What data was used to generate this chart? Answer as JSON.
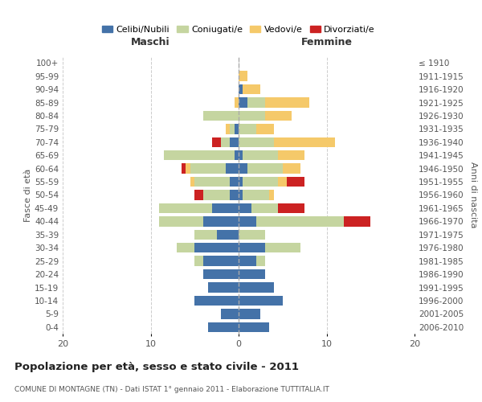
{
  "age_groups": [
    "0-4",
    "5-9",
    "10-14",
    "15-19",
    "20-24",
    "25-29",
    "30-34",
    "35-39",
    "40-44",
    "45-49",
    "50-54",
    "55-59",
    "60-64",
    "65-69",
    "70-74",
    "75-79",
    "80-84",
    "85-89",
    "90-94",
    "95-99",
    "100+"
  ],
  "birth_years": [
    "2006-2010",
    "2001-2005",
    "1996-2000",
    "1991-1995",
    "1986-1990",
    "1981-1985",
    "1976-1980",
    "1971-1975",
    "1966-1970",
    "1961-1965",
    "1956-1960",
    "1951-1955",
    "1946-1950",
    "1941-1945",
    "1936-1940",
    "1931-1935",
    "1926-1930",
    "1921-1925",
    "1916-1920",
    "1911-1915",
    "≤ 1910"
  ],
  "colors": {
    "celibi": "#4472a8",
    "coniugati": "#c5d5a0",
    "vedovi": "#f5c96a",
    "divorziati": "#cc2222"
  },
  "maschi": {
    "celibi": [
      3.5,
      2.0,
      5.0,
      3.5,
      4.0,
      4.0,
      5.0,
      2.5,
      4.0,
      3.0,
      1.0,
      1.0,
      1.5,
      0.5,
      1.0,
      0.5,
      0.0,
      0.0,
      0.0,
      0.0,
      0.0
    ],
    "coniugati": [
      0.0,
      0.0,
      0.0,
      0.0,
      0.0,
      1.0,
      2.0,
      2.5,
      5.0,
      6.0,
      3.0,
      4.0,
      4.0,
      8.0,
      1.0,
      0.5,
      4.0,
      0.0,
      0.0,
      0.0,
      0.0
    ],
    "vedovi": [
      0.0,
      0.0,
      0.0,
      0.0,
      0.0,
      0.0,
      0.0,
      0.0,
      0.0,
      0.0,
      0.0,
      0.5,
      0.5,
      0.0,
      0.0,
      0.5,
      0.0,
      0.5,
      0.0,
      0.0,
      0.0
    ],
    "divorziati": [
      0.0,
      0.0,
      0.0,
      0.0,
      0.0,
      0.0,
      0.0,
      0.0,
      0.0,
      0.0,
      1.0,
      0.0,
      0.5,
      0.0,
      1.0,
      0.0,
      0.0,
      0.0,
      0.0,
      0.0,
      0.0
    ]
  },
  "femmine": {
    "celibi": [
      3.5,
      2.5,
      5.0,
      4.0,
      3.0,
      2.0,
      3.0,
      0.0,
      2.0,
      1.5,
      0.5,
      0.5,
      1.0,
      0.5,
      0.0,
      0.0,
      0.0,
      1.0,
      0.5,
      0.0,
      0.0
    ],
    "coniugati": [
      0.0,
      0.0,
      0.0,
      0.0,
      0.0,
      1.0,
      4.0,
      3.0,
      10.0,
      3.0,
      3.0,
      4.0,
      4.0,
      4.0,
      4.0,
      2.0,
      3.0,
      2.0,
      0.0,
      0.0,
      0.0
    ],
    "vedovi": [
      0.0,
      0.0,
      0.0,
      0.0,
      0.0,
      0.0,
      0.0,
      0.0,
      0.0,
      0.0,
      0.5,
      1.0,
      2.0,
      3.0,
      7.0,
      2.0,
      3.0,
      5.0,
      2.0,
      1.0,
      0.0
    ],
    "divorziati": [
      0.0,
      0.0,
      0.0,
      0.0,
      0.0,
      0.0,
      0.0,
      0.0,
      3.0,
      3.0,
      0.0,
      2.0,
      0.0,
      0.0,
      0.0,
      0.0,
      0.0,
      0.0,
      0.0,
      0.0,
      0.0
    ]
  },
  "title": "Popolazione per età, sesso e stato civile - 2011",
  "subtitle": "COMUNE DI MONTAGNE (TN) - Dati ISTAT 1° gennaio 2011 - Elaborazione TUTTITALIA.IT",
  "xlabel_left": "Maschi",
  "xlabel_right": "Femmine",
  "ylabel_left": "Fasce di età",
  "ylabel_right": "Anni di nascita",
  "xlim": 20,
  "legend_labels": [
    "Celibi/Nubili",
    "Coniugati/e",
    "Vedovi/e",
    "Divorziati/e"
  ],
  "bg_color": "#ffffff",
  "grid_color": "#cccccc"
}
